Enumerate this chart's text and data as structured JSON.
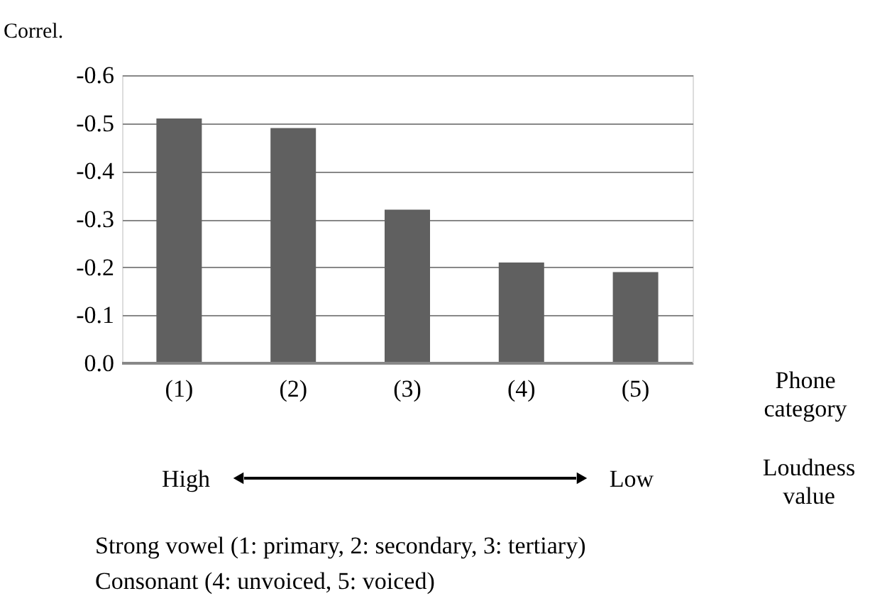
{
  "chart_data": {
    "type": "bar",
    "categories": [
      "(1)",
      "(2)",
      "(3)",
      "(4)",
      "(5)"
    ],
    "values": [
      -0.51,
      -0.49,
      -0.32,
      -0.21,
      -0.19
    ],
    "color": "#606060",
    "ylabel": "Correl.",
    "xlabel": "Phone category",
    "ylim": [
      0,
      -0.6
    ],
    "yticks": [
      {
        "value": 0,
        "label": "0.0"
      },
      -0.1,
      -0.2,
      -0.3,
      -0.4,
      -0.5,
      -0.6
    ],
    "grid": "y",
    "annotations": [
      "High",
      "Low",
      "Loudness value",
      "Strong vowel (1: primary, 2: secondary, 3: tertiary)",
      "Consonant (4: unvoiced, 5: voiced)"
    ]
  }
}
